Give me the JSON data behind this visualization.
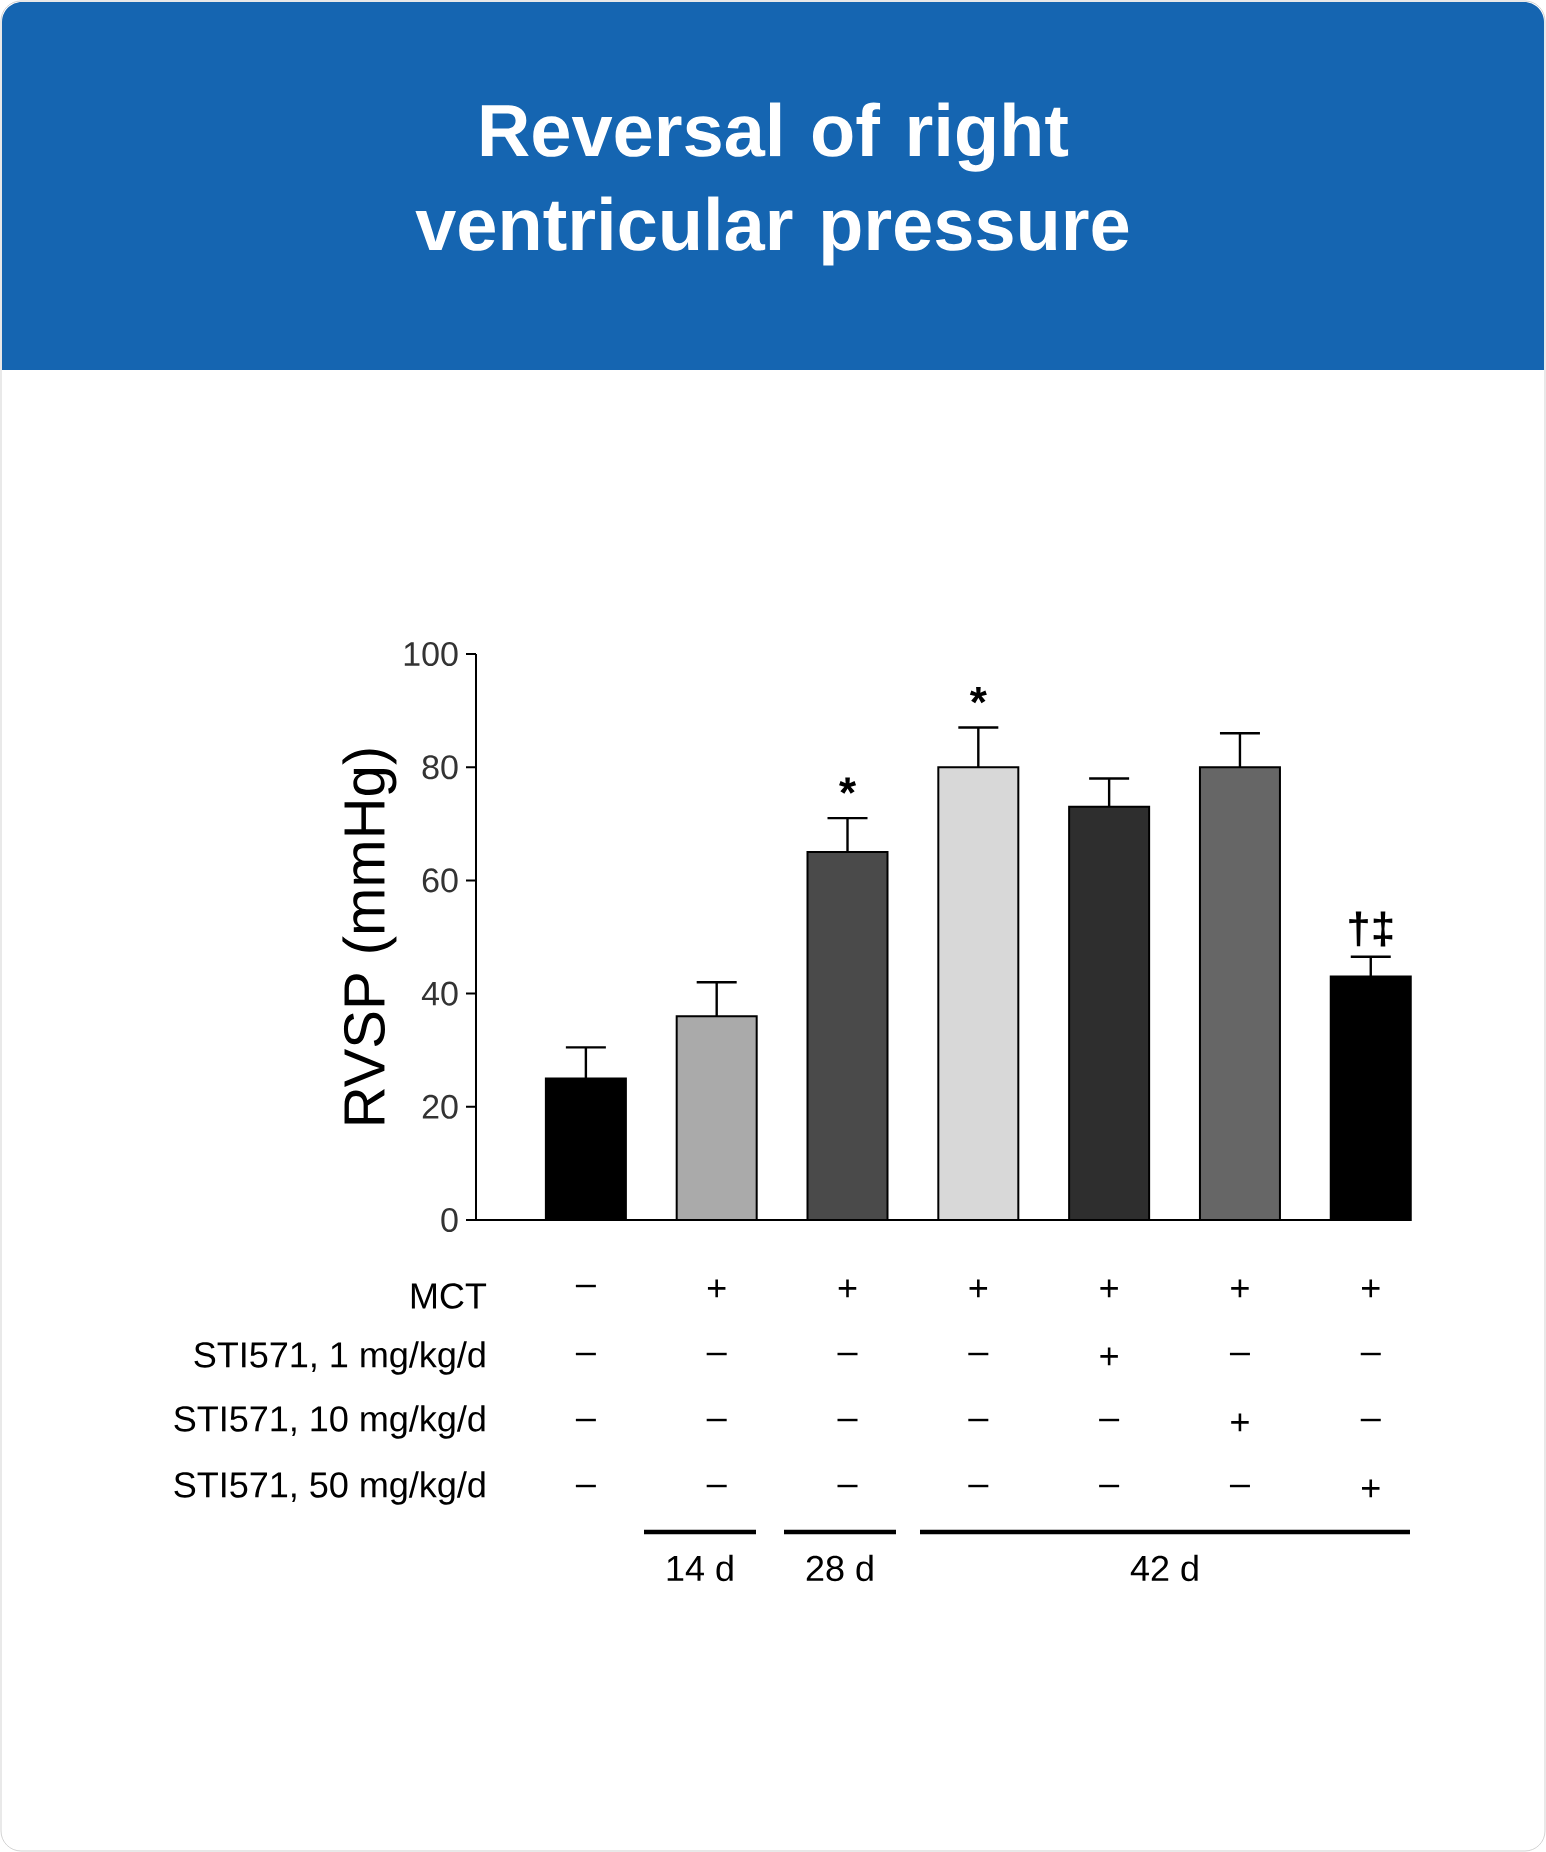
{
  "chart_data": {
    "type": "bar",
    "title": "Reversal of right ventricular pressure",
    "ylabel": "RVSP (mmHg)",
    "categories": [
      "–",
      "+",
      "+",
      "+",
      "+",
      "+",
      "+"
    ],
    "values": [
      25,
      36,
      65,
      80,
      73,
      80,
      43
    ],
    "errors": [
      5.5,
      6,
      6,
      7,
      5,
      6,
      3.5
    ],
    "colors": [
      "#000000",
      "#aaaaaa",
      "#4a4a4a",
      "#d8d8d8",
      "#2e2e2e",
      "#666666",
      "#000000"
    ],
    "ylim": [
      0,
      100
    ],
    "yticks": [
      0,
      20,
      40,
      60,
      80,
      100
    ],
    "annotations": [
      "MCT",
      "STI571, 1 mg/kg/d",
      "STI571, 10 mg/kg/d",
      "STI571, 50 mg/kg/d",
      "–",
      "–",
      "–",
      "–",
      "+",
      "–",
      "–",
      "–",
      "–",
      "–",
      "–",
      "–",
      "+",
      "–",
      "–",
      "–",
      "–",
      "–",
      "–",
      "–",
      "+",
      "14 d",
      "28 d",
      "42 d",
      "*",
      "*",
      "†‡"
    ]
  }
}
